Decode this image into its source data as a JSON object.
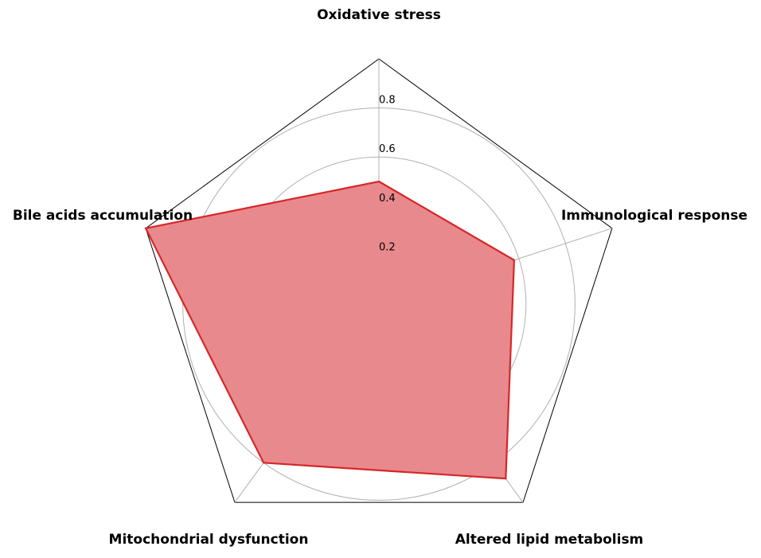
{
  "chart_data": {
    "type": "radar",
    "categories": [
      "Oxidative stress",
      "Immunological response",
      "Altered lipid metabolism",
      "Mitochondrial dysfunction",
      "Bile acids accumulation"
    ],
    "series": [
      {
        "values": [
          0.5,
          0.58,
          0.88,
          0.8,
          1.0
        ]
      }
    ],
    "rticks": [
      "0.2",
      "0.4",
      "0.6",
      "0.8"
    ],
    "rtick_values": [
      0.2,
      0.4,
      0.6,
      0.8
    ],
    "rlim": [
      0,
      1.0
    ],
    "grid": true,
    "colors": {
      "line": "#d62728",
      "fill": "#e8898d",
      "grid": "#b0b0b0",
      "frame": "#000000"
    }
  }
}
